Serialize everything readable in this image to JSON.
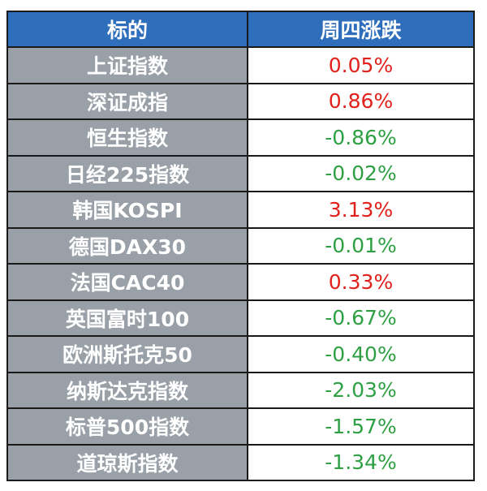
{
  "header": {
    "col1": "标的",
    "col2": "周四涨跌"
  },
  "colors": {
    "header_bg": "#2e6ebb",
    "name_bg": "#9aa0a8",
    "up": "#e0201b",
    "down": "#2ea043"
  },
  "rows": [
    {
      "name": "上证指数",
      "change": "0.05%",
      "dir": "up"
    },
    {
      "name": "深证成指",
      "change": "0.86%",
      "dir": "up"
    },
    {
      "name": "恒生指数",
      "change": "-0.86%",
      "dir": "down"
    },
    {
      "name": "日经225指数",
      "change": "-0.02%",
      "dir": "down"
    },
    {
      "name": "韩国KOSPI",
      "change": "3.13%",
      "dir": "up"
    },
    {
      "name": "德国DAX30",
      "change": "-0.01%",
      "dir": "down"
    },
    {
      "name": "法国CAC40",
      "change": "0.33%",
      "dir": "up"
    },
    {
      "name": "英国富时100",
      "change": "-0.67%",
      "dir": "down"
    },
    {
      "name": "欧洲斯托克50",
      "change": "-0.40%",
      "dir": "down"
    },
    {
      "name": "纳斯达克指数",
      "change": "-2.03%",
      "dir": "down"
    },
    {
      "name": "标普500指数",
      "change": "-1.57%",
      "dir": "down"
    },
    {
      "name": "道琼斯指数",
      "change": "-1.34%",
      "dir": "down"
    }
  ]
}
